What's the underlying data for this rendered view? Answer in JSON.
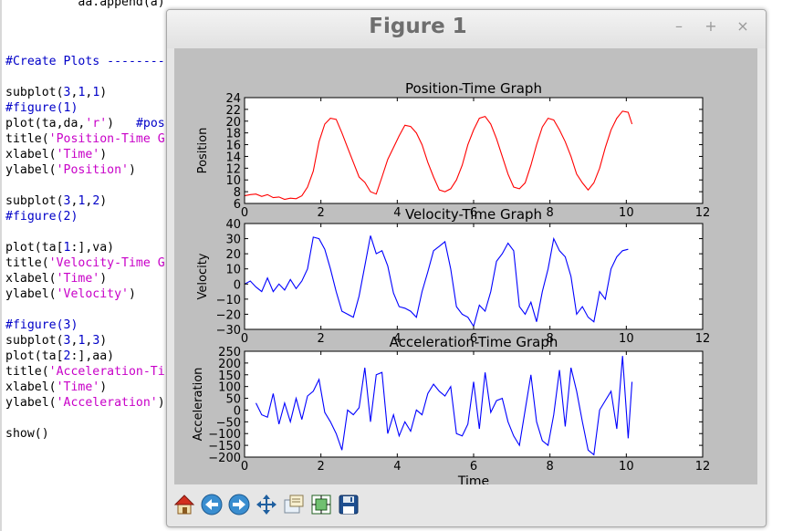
{
  "editor": {
    "lines": [
      {
        "y": -6,
        "parts": [
          {
            "t": "          aa.append(a)",
            "c": ""
          }
        ]
      },
      {
        "y": 59,
        "parts": [
          {
            "t": "#Create Plots --------",
            "c": "c-comment"
          }
        ]
      },
      {
        "y": 93,
        "parts": [
          {
            "t": "subplot(",
            "c": ""
          },
          {
            "t": "3",
            "c": "c-num"
          },
          {
            "t": ",",
            "c": ""
          },
          {
            "t": "1",
            "c": "c-num"
          },
          {
            "t": ",",
            "c": ""
          },
          {
            "t": "1",
            "c": "c-num"
          },
          {
            "t": ")",
            "c": ""
          }
        ]
      },
      {
        "y": 110,
        "parts": [
          {
            "t": "#figure(1)",
            "c": "c-comment"
          }
        ]
      },
      {
        "y": 127,
        "parts": [
          {
            "t": "plot(ta,da,",
            "c": ""
          },
          {
            "t": "'r'",
            "c": "c-str"
          },
          {
            "t": ")   ",
            "c": ""
          },
          {
            "t": "#pos",
            "c": "c-comment"
          }
        ]
      },
      {
        "y": 144,
        "parts": [
          {
            "t": "title(",
            "c": ""
          },
          {
            "t": "'Position-Time G",
            "c": "c-str"
          }
        ]
      },
      {
        "y": 161,
        "parts": [
          {
            "t": "xlabel(",
            "c": ""
          },
          {
            "t": "'Time'",
            "c": "c-str"
          },
          {
            "t": ")",
            "c": ""
          }
        ]
      },
      {
        "y": 178,
        "parts": [
          {
            "t": "ylabel(",
            "c": ""
          },
          {
            "t": "'Position'",
            "c": "c-str"
          },
          {
            "t": ")",
            "c": ""
          }
        ]
      },
      {
        "y": 212,
        "parts": [
          {
            "t": "subplot(",
            "c": ""
          },
          {
            "t": "3",
            "c": "c-num"
          },
          {
            "t": ",",
            "c": ""
          },
          {
            "t": "1",
            "c": "c-num"
          },
          {
            "t": ",",
            "c": ""
          },
          {
            "t": "2",
            "c": "c-num"
          },
          {
            "t": ")",
            "c": ""
          }
        ]
      },
      {
        "y": 229,
        "parts": [
          {
            "t": "#figure(2)",
            "c": "c-comment"
          }
        ]
      },
      {
        "y": 263,
        "parts": [
          {
            "t": "plot(ta[",
            "c": ""
          },
          {
            "t": "1",
            "c": "c-num"
          },
          {
            "t": ":],va)",
            "c": ""
          }
        ]
      },
      {
        "y": 280,
        "parts": [
          {
            "t": "title(",
            "c": ""
          },
          {
            "t": "'Velocity-Time G",
            "c": "c-str"
          }
        ]
      },
      {
        "y": 297,
        "parts": [
          {
            "t": "xlabel(",
            "c": ""
          },
          {
            "t": "'Time'",
            "c": "c-str"
          },
          {
            "t": ")",
            "c": ""
          }
        ]
      },
      {
        "y": 314,
        "parts": [
          {
            "t": "ylabel(",
            "c": ""
          },
          {
            "t": "'Velocity'",
            "c": "c-str"
          },
          {
            "t": ")",
            "c": ""
          }
        ]
      },
      {
        "y": 348,
        "parts": [
          {
            "t": "#figure(3)",
            "c": "c-comment"
          }
        ]
      },
      {
        "y": 365,
        "parts": [
          {
            "t": "subplot(",
            "c": ""
          },
          {
            "t": "3",
            "c": "c-num"
          },
          {
            "t": ",",
            "c": ""
          },
          {
            "t": "1",
            "c": "c-num"
          },
          {
            "t": ",",
            "c": ""
          },
          {
            "t": "3",
            "c": "c-num"
          },
          {
            "t": ")",
            "c": ""
          }
        ]
      },
      {
        "y": 382,
        "parts": [
          {
            "t": "plot(ta[",
            "c": ""
          },
          {
            "t": "2",
            "c": "c-num"
          },
          {
            "t": ":],aa)",
            "c": ""
          }
        ]
      },
      {
        "y": 399,
        "parts": [
          {
            "t": "title(",
            "c": ""
          },
          {
            "t": "'Acceleration-Ti",
            "c": "c-str"
          }
        ]
      },
      {
        "y": 416,
        "parts": [
          {
            "t": "xlabel(",
            "c": ""
          },
          {
            "t": "'Time'",
            "c": "c-str"
          },
          {
            "t": ")",
            "c": ""
          }
        ]
      },
      {
        "y": 433,
        "parts": [
          {
            "t": "ylabel(",
            "c": ""
          },
          {
            "t": "'Acceleration'",
            "c": "c-str"
          },
          {
            "t": ")",
            "c": ""
          }
        ]
      },
      {
        "y": 467,
        "parts": [
          {
            "t": "show()",
            "c": ""
          }
        ]
      }
    ]
  },
  "window": {
    "title": "Figure 1",
    "minimize_glyph": "–",
    "maximize_glyph": "+",
    "close_glyph": "×"
  },
  "toolbar": {
    "buttons": [
      {
        "name": "home-button",
        "icon": "home-icon"
      },
      {
        "name": "back-button",
        "icon": "back-arrow-icon"
      },
      {
        "name": "forward-button",
        "icon": "forward-arrow-icon"
      },
      {
        "name": "pan-button",
        "icon": "pan-move-icon"
      },
      {
        "name": "zoom-button",
        "icon": "zoom-rect-icon"
      },
      {
        "name": "configure-subplots-button",
        "icon": "subplots-icon"
      },
      {
        "name": "save-button",
        "icon": "floppy-disk-icon"
      }
    ]
  },
  "chart_data": [
    {
      "type": "line",
      "title": "Position-Time Graph",
      "xlabel": "",
      "ylabel": "Position",
      "xlim": [
        0,
        12
      ],
      "ylim": [
        6,
        24
      ],
      "xticks": [
        0,
        2,
        4,
        6,
        8,
        10,
        12
      ],
      "yticks": [
        6,
        8,
        10,
        12,
        14,
        16,
        18,
        20,
        22,
        24
      ],
      "color": "#ff0000",
      "x": [
        0,
        0.15,
        0.3,
        0.45,
        0.6,
        0.75,
        0.9,
        1.05,
        1.2,
        1.35,
        1.5,
        1.65,
        1.8,
        1.95,
        2.1,
        2.25,
        2.4,
        2.55,
        2.7,
        2.85,
        3.0,
        3.15,
        3.3,
        3.45,
        3.6,
        3.75,
        3.9,
        4.05,
        4.2,
        4.35,
        4.5,
        4.65,
        4.8,
        4.95,
        5.1,
        5.25,
        5.4,
        5.55,
        5.7,
        5.85,
        6.0,
        6.15,
        6.3,
        6.45,
        6.6,
        6.75,
        6.9,
        7.05,
        7.2,
        7.35,
        7.5,
        7.65,
        7.8,
        7.95,
        8.1,
        8.25,
        8.4,
        8.55,
        8.7,
        8.85,
        9.0,
        9.15,
        9.3,
        9.45,
        9.6,
        9.75,
        9.9,
        10.05,
        10.15
      ],
      "y": [
        7.3,
        7.5,
        7.6,
        7.2,
        7.5,
        7.0,
        7.1,
        6.7,
        6.9,
        6.8,
        7.3,
        8.8,
        11.5,
        16.5,
        19.5,
        20.5,
        20.3,
        18,
        15.5,
        13,
        10.5,
        9.6,
        8,
        7.6,
        10.5,
        13.5,
        15.5,
        17.5,
        19.3,
        19.1,
        18,
        16,
        13,
        10.5,
        8.3,
        8.0,
        8.5,
        10,
        12.5,
        16,
        18.5,
        20.5,
        20.8,
        19.5,
        17,
        14,
        11,
        8.8,
        8.5,
        9.5,
        12.5,
        16,
        19,
        20.5,
        20.2,
        18.5,
        16.5,
        14,
        11,
        9.5,
        8.3,
        9.5,
        12,
        15.5,
        18.5,
        20.5,
        21.7,
        21.5,
        19.5
      ]
    },
    {
      "type": "line",
      "title": "Velocity-Time Graph",
      "xlabel": "",
      "ylabel": "Velocity",
      "xlim": [
        0,
        12
      ],
      "ylim": [
        -30,
        40
      ],
      "xticks": [
        0,
        2,
        4,
        6,
        8,
        10,
        12
      ],
      "yticks": [
        -30,
        -20,
        -10,
        0,
        10,
        20,
        30,
        40
      ],
      "color": "#0000ff",
      "x": [
        0,
        0.15,
        0.3,
        0.45,
        0.6,
        0.75,
        0.9,
        1.05,
        1.2,
        1.35,
        1.5,
        1.65,
        1.8,
        1.95,
        2.1,
        2.25,
        2.4,
        2.55,
        2.7,
        2.85,
        3.0,
        3.15,
        3.3,
        3.45,
        3.6,
        3.75,
        3.9,
        4.05,
        4.2,
        4.35,
        4.5,
        4.65,
        4.8,
        4.95,
        5.1,
        5.25,
        5.4,
        5.55,
        5.7,
        5.85,
        6.0,
        6.15,
        6.3,
        6.45,
        6.6,
        6.75,
        6.9,
        7.05,
        7.2,
        7.35,
        7.5,
        7.65,
        7.8,
        7.95,
        8.1,
        8.25,
        8.4,
        8.55,
        8.7,
        8.85,
        9.0,
        9.15,
        9.3,
        9.45,
        9.6,
        9.75,
        9.9,
        10.05
      ],
      "y": [
        0,
        2,
        -2,
        -5,
        4,
        -5,
        0,
        -4,
        3,
        -3,
        2,
        10,
        31,
        30,
        23,
        10,
        -5,
        -18,
        -20,
        -22,
        -8,
        12,
        32,
        20,
        22,
        12,
        -6,
        -15,
        -16,
        -18,
        -22,
        -5,
        8,
        22,
        25,
        28,
        10,
        -15,
        -20,
        -22,
        -28,
        -14,
        -18,
        -5,
        15,
        20,
        27,
        22,
        -15,
        -20,
        -12,
        -25,
        -5,
        10,
        30,
        22,
        18,
        5,
        -20,
        -15,
        -22,
        -25,
        -5,
        -10,
        10,
        18,
        22,
        23
      ]
    },
    {
      "type": "line",
      "title": "Acceleration-Time Graph",
      "xlabel": "Time",
      "ylabel": "Acceleration",
      "xlim": [
        0,
        12
      ],
      "ylim": [
        -200,
        250
      ],
      "xticks": [
        0,
        2,
        4,
        6,
        8,
        10,
        12
      ],
      "yticks": [
        -200,
        -150,
        -100,
        -50,
        0,
        50,
        100,
        150,
        200,
        250
      ],
      "color": "#0000ff",
      "x": [
        0.3,
        0.45,
        0.6,
        0.75,
        0.9,
        1.05,
        1.2,
        1.35,
        1.5,
        1.65,
        1.8,
        1.95,
        2.1,
        2.25,
        2.4,
        2.55,
        2.7,
        2.85,
        3.0,
        3.15,
        3.3,
        3.45,
        3.6,
        3.75,
        3.9,
        4.05,
        4.2,
        4.35,
        4.5,
        4.65,
        4.8,
        4.95,
        5.1,
        5.25,
        5.4,
        5.55,
        5.7,
        5.85,
        6.0,
        6.15,
        6.3,
        6.45,
        6.6,
        6.75,
        6.9,
        7.05,
        7.2,
        7.35,
        7.5,
        7.65,
        7.8,
        7.95,
        8.1,
        8.25,
        8.4,
        8.55,
        8.7,
        8.85,
        9.0,
        9.15,
        9.3,
        9.45,
        9.6,
        9.75,
        9.9,
        10.05,
        10.15
      ],
      "y": [
        30,
        -20,
        -30,
        70,
        -60,
        30,
        -50,
        50,
        -40,
        60,
        80,
        130,
        -10,
        -50,
        -100,
        -170,
        0,
        -20,
        10,
        180,
        -50,
        150,
        160,
        -100,
        -20,
        -110,
        -50,
        -90,
        0,
        -20,
        70,
        110,
        80,
        60,
        100,
        -100,
        -110,
        -60,
        120,
        -80,
        160,
        -10,
        40,
        50,
        -50,
        -110,
        -150,
        0,
        150,
        -50,
        -130,
        -150,
        -20,
        170,
        -70,
        180,
        80,
        -50,
        -170,
        -190,
        0,
        40,
        80,
        -80,
        230,
        -120,
        120
      ]
    }
  ]
}
